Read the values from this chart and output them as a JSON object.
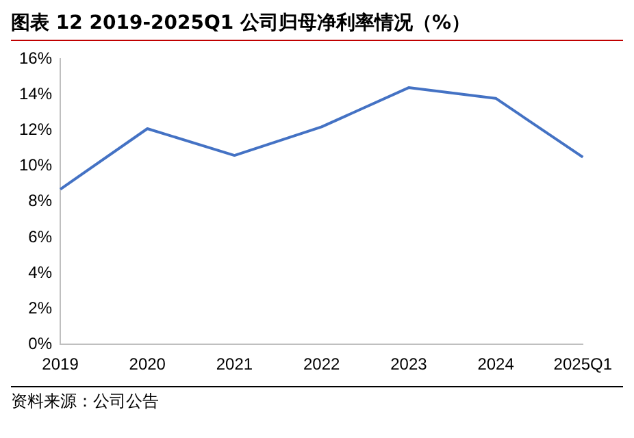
{
  "chart_data": {
    "type": "line",
    "title": "图表 12 2019-2025Q1 公司归母净利率情况（%）",
    "categories": [
      "2019",
      "2020",
      "2021",
      "2022",
      "2023",
      "2024",
      "2025Q1"
    ],
    "series": [
      {
        "color": "#4472c4",
        "values": [
          8.7,
          12.1,
          10.6,
          12.2,
          14.4,
          13.8,
          10.5
        ]
      }
    ],
    "ylim": [
      0,
      16
    ],
    "yticks": [
      {
        "value": 0,
        "label": "0%"
      },
      {
        "value": 2,
        "label": "2%"
      },
      {
        "value": 4,
        "label": "4%"
      },
      {
        "value": 6,
        "label": "6%"
      },
      {
        "value": 8,
        "label": "8%"
      },
      {
        "value": 10,
        "label": "10%"
      },
      {
        "value": 12,
        "label": "12%"
      },
      {
        "value": 14,
        "label": "14%"
      },
      {
        "value": 16,
        "label": "16%"
      }
    ],
    "grid": false,
    "legend": false,
    "marker": "none",
    "line_style": "solid",
    "annotations": [
      "资料来源：公司公告"
    ]
  }
}
